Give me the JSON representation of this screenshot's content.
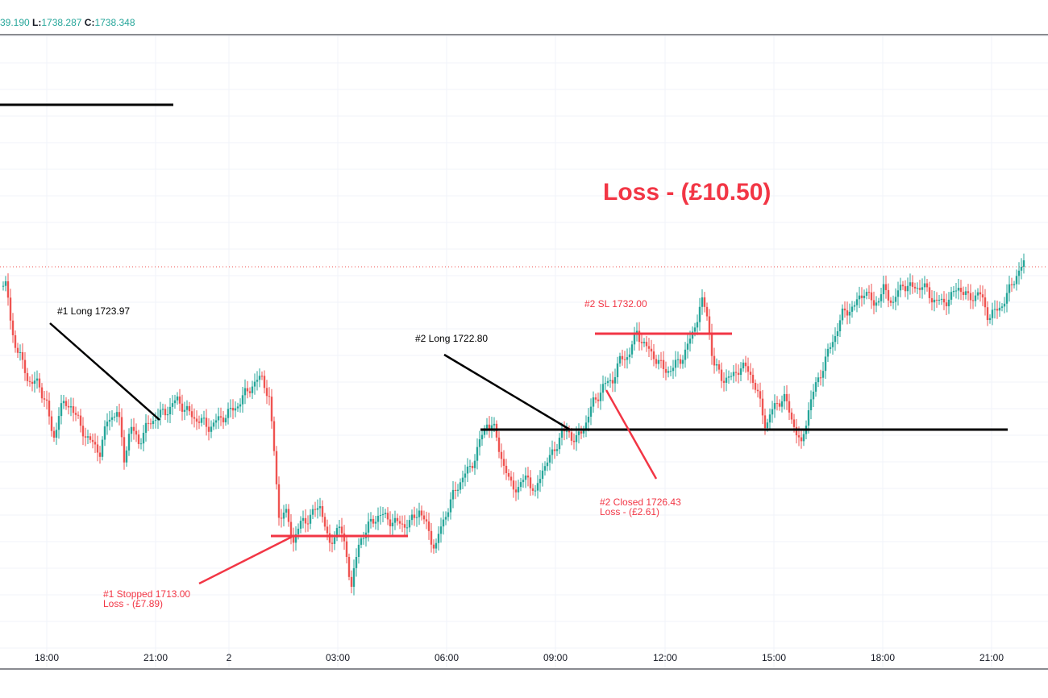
{
  "ohlc": {
    "h_value": "39.190",
    "l_label": "L:",
    "l_value": "1738.287",
    "c_label": "C:",
    "c_value": "1738.348"
  },
  "colors": {
    "up": "#26a69a",
    "down": "#ef5350",
    "annotation_red": "#f23645",
    "annotation_black": "#000000",
    "grid": "#f0f3fa"
  },
  "chart_data": {
    "type": "candlestick",
    "title": "",
    "summary": "Loss - (£10.50)",
    "x_ticks": [
      "18:00",
      "21:00",
      "2",
      "03:00",
      "06:00",
      "09:00",
      "12:00",
      "15:00",
      "18:00",
      "21:00"
    ],
    "last_price": 1738.348,
    "trades": [
      {
        "entry_label": "#1 Long 1723.97",
        "exit_label": "#1 Stopped 1713.00",
        "pl_label": "Loss - (£7.89)",
        "entry": 1723.97,
        "stop": 1713.0
      },
      {
        "entry_label": "#2 Long 1722.80",
        "stop_label": "#2 SL 1732.00",
        "exit_label": "#2 Closed 1726.43",
        "pl_label": "Loss - (£2.61)",
        "entry": 1722.8,
        "stop": 1732.0,
        "close": 1726.43
      }
    ]
  }
}
